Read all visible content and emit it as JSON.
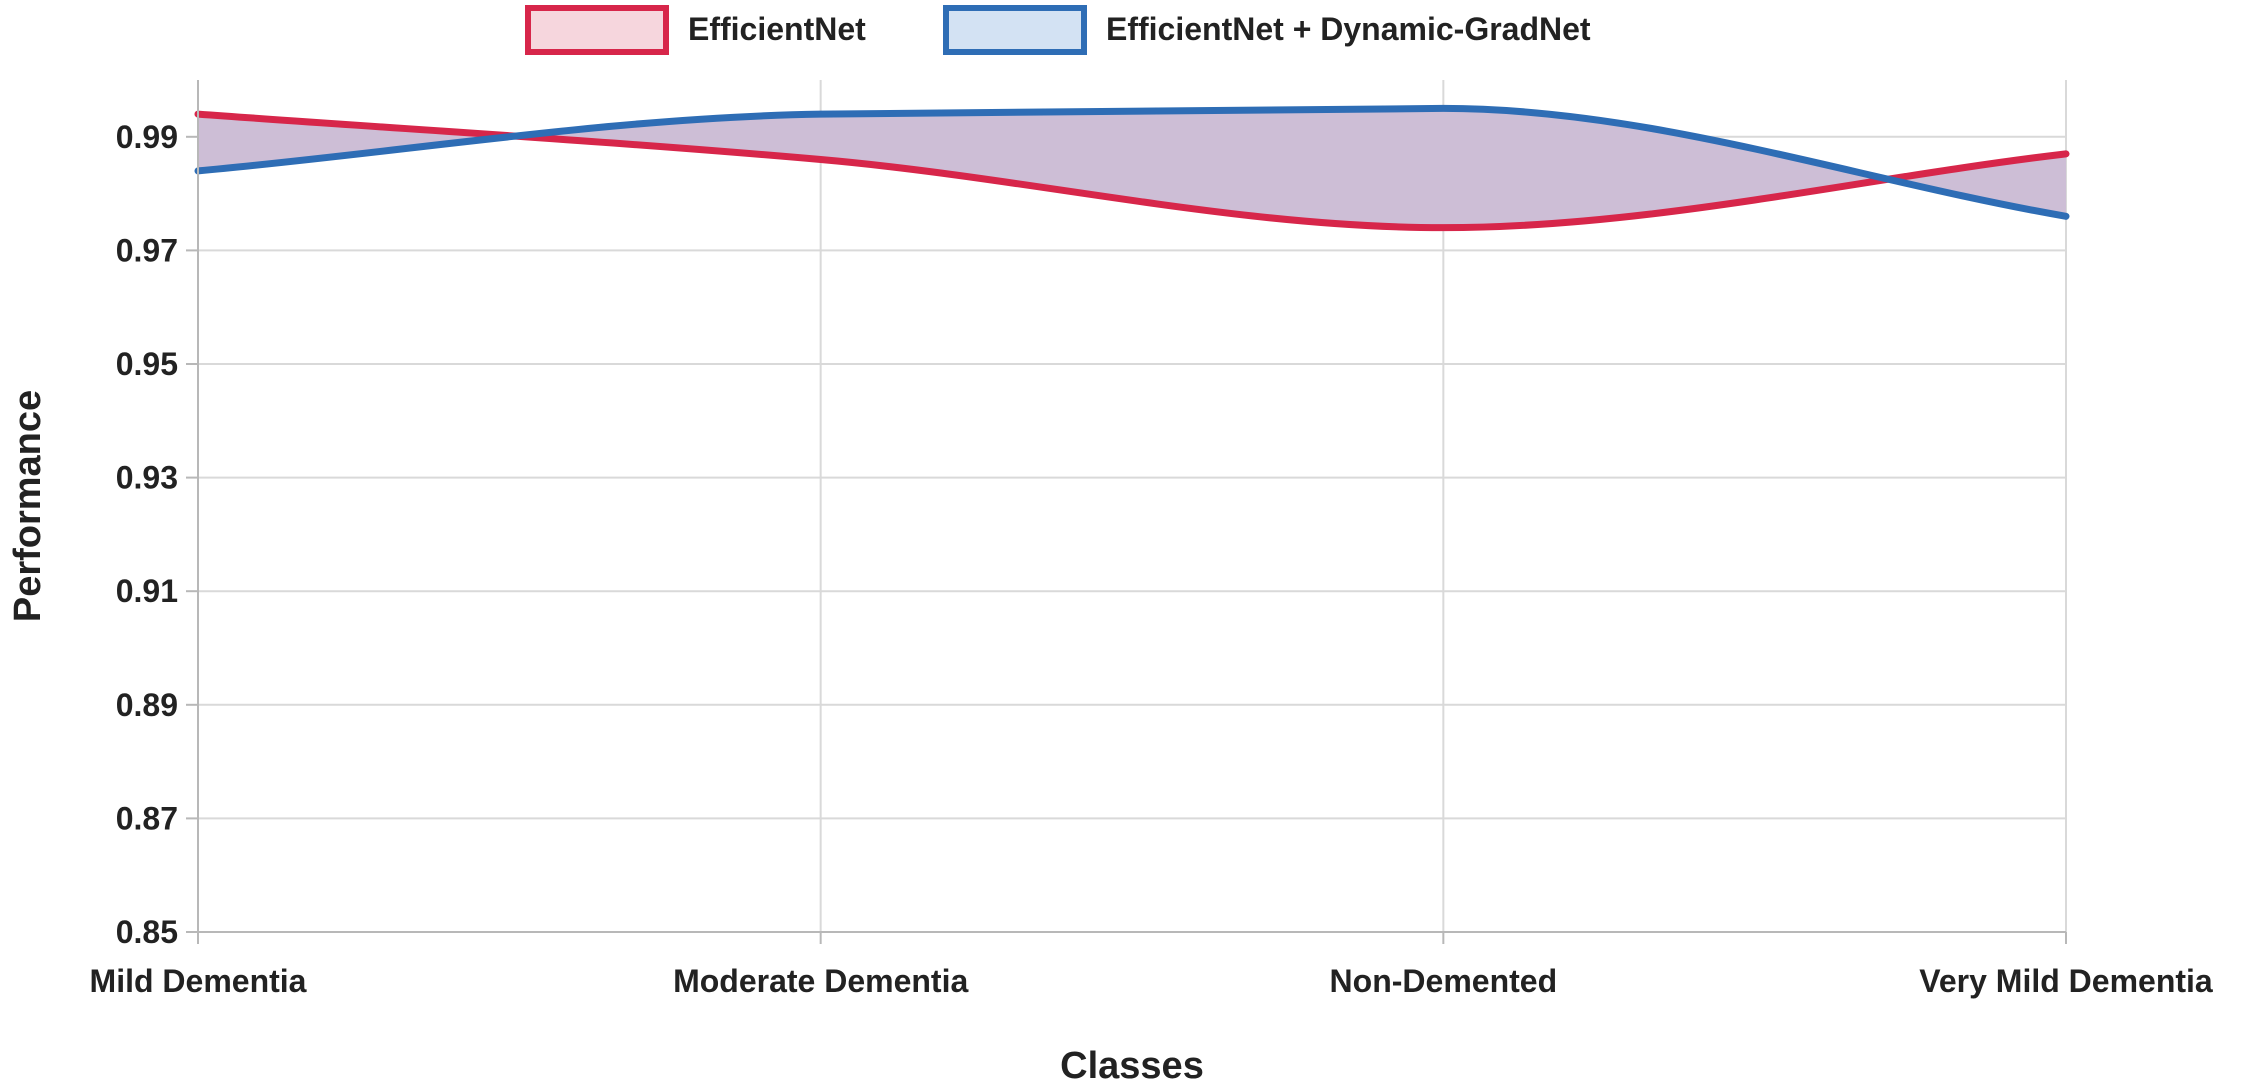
{
  "chart_data": {
    "type": "line",
    "xlabel": "Classes",
    "ylabel": "Performance",
    "categories": [
      "Mild Dementia",
      "Moderate Dementia",
      "Non-Demented",
      "Very Mild Dementia"
    ],
    "ylim": [
      0.85,
      1.0
    ],
    "yticks": [
      0.85,
      0.87,
      0.89,
      0.91,
      0.93,
      0.95,
      0.97,
      0.99
    ],
    "ytick_labels": [
      "0.85",
      "0.87",
      "0.89",
      "0.91",
      "0.93",
      "0.95",
      "0.97",
      "0.99"
    ],
    "grid": true,
    "legend_position": "top",
    "series": [
      {
        "name": "EfficientNet",
        "values": [
          0.994,
          0.986,
          0.974,
          0.987
        ],
        "color": "#d7264a",
        "fill": "#f6d6dd"
      },
      {
        "name": "EfficientNet + Dynamic-GradNet",
        "values": [
          0.984,
          0.994,
          0.995,
          0.976
        ],
        "color": "#2e6db5",
        "fill": "#d3e2f3"
      }
    ],
    "between_fill_color": "#cdbed6"
  }
}
